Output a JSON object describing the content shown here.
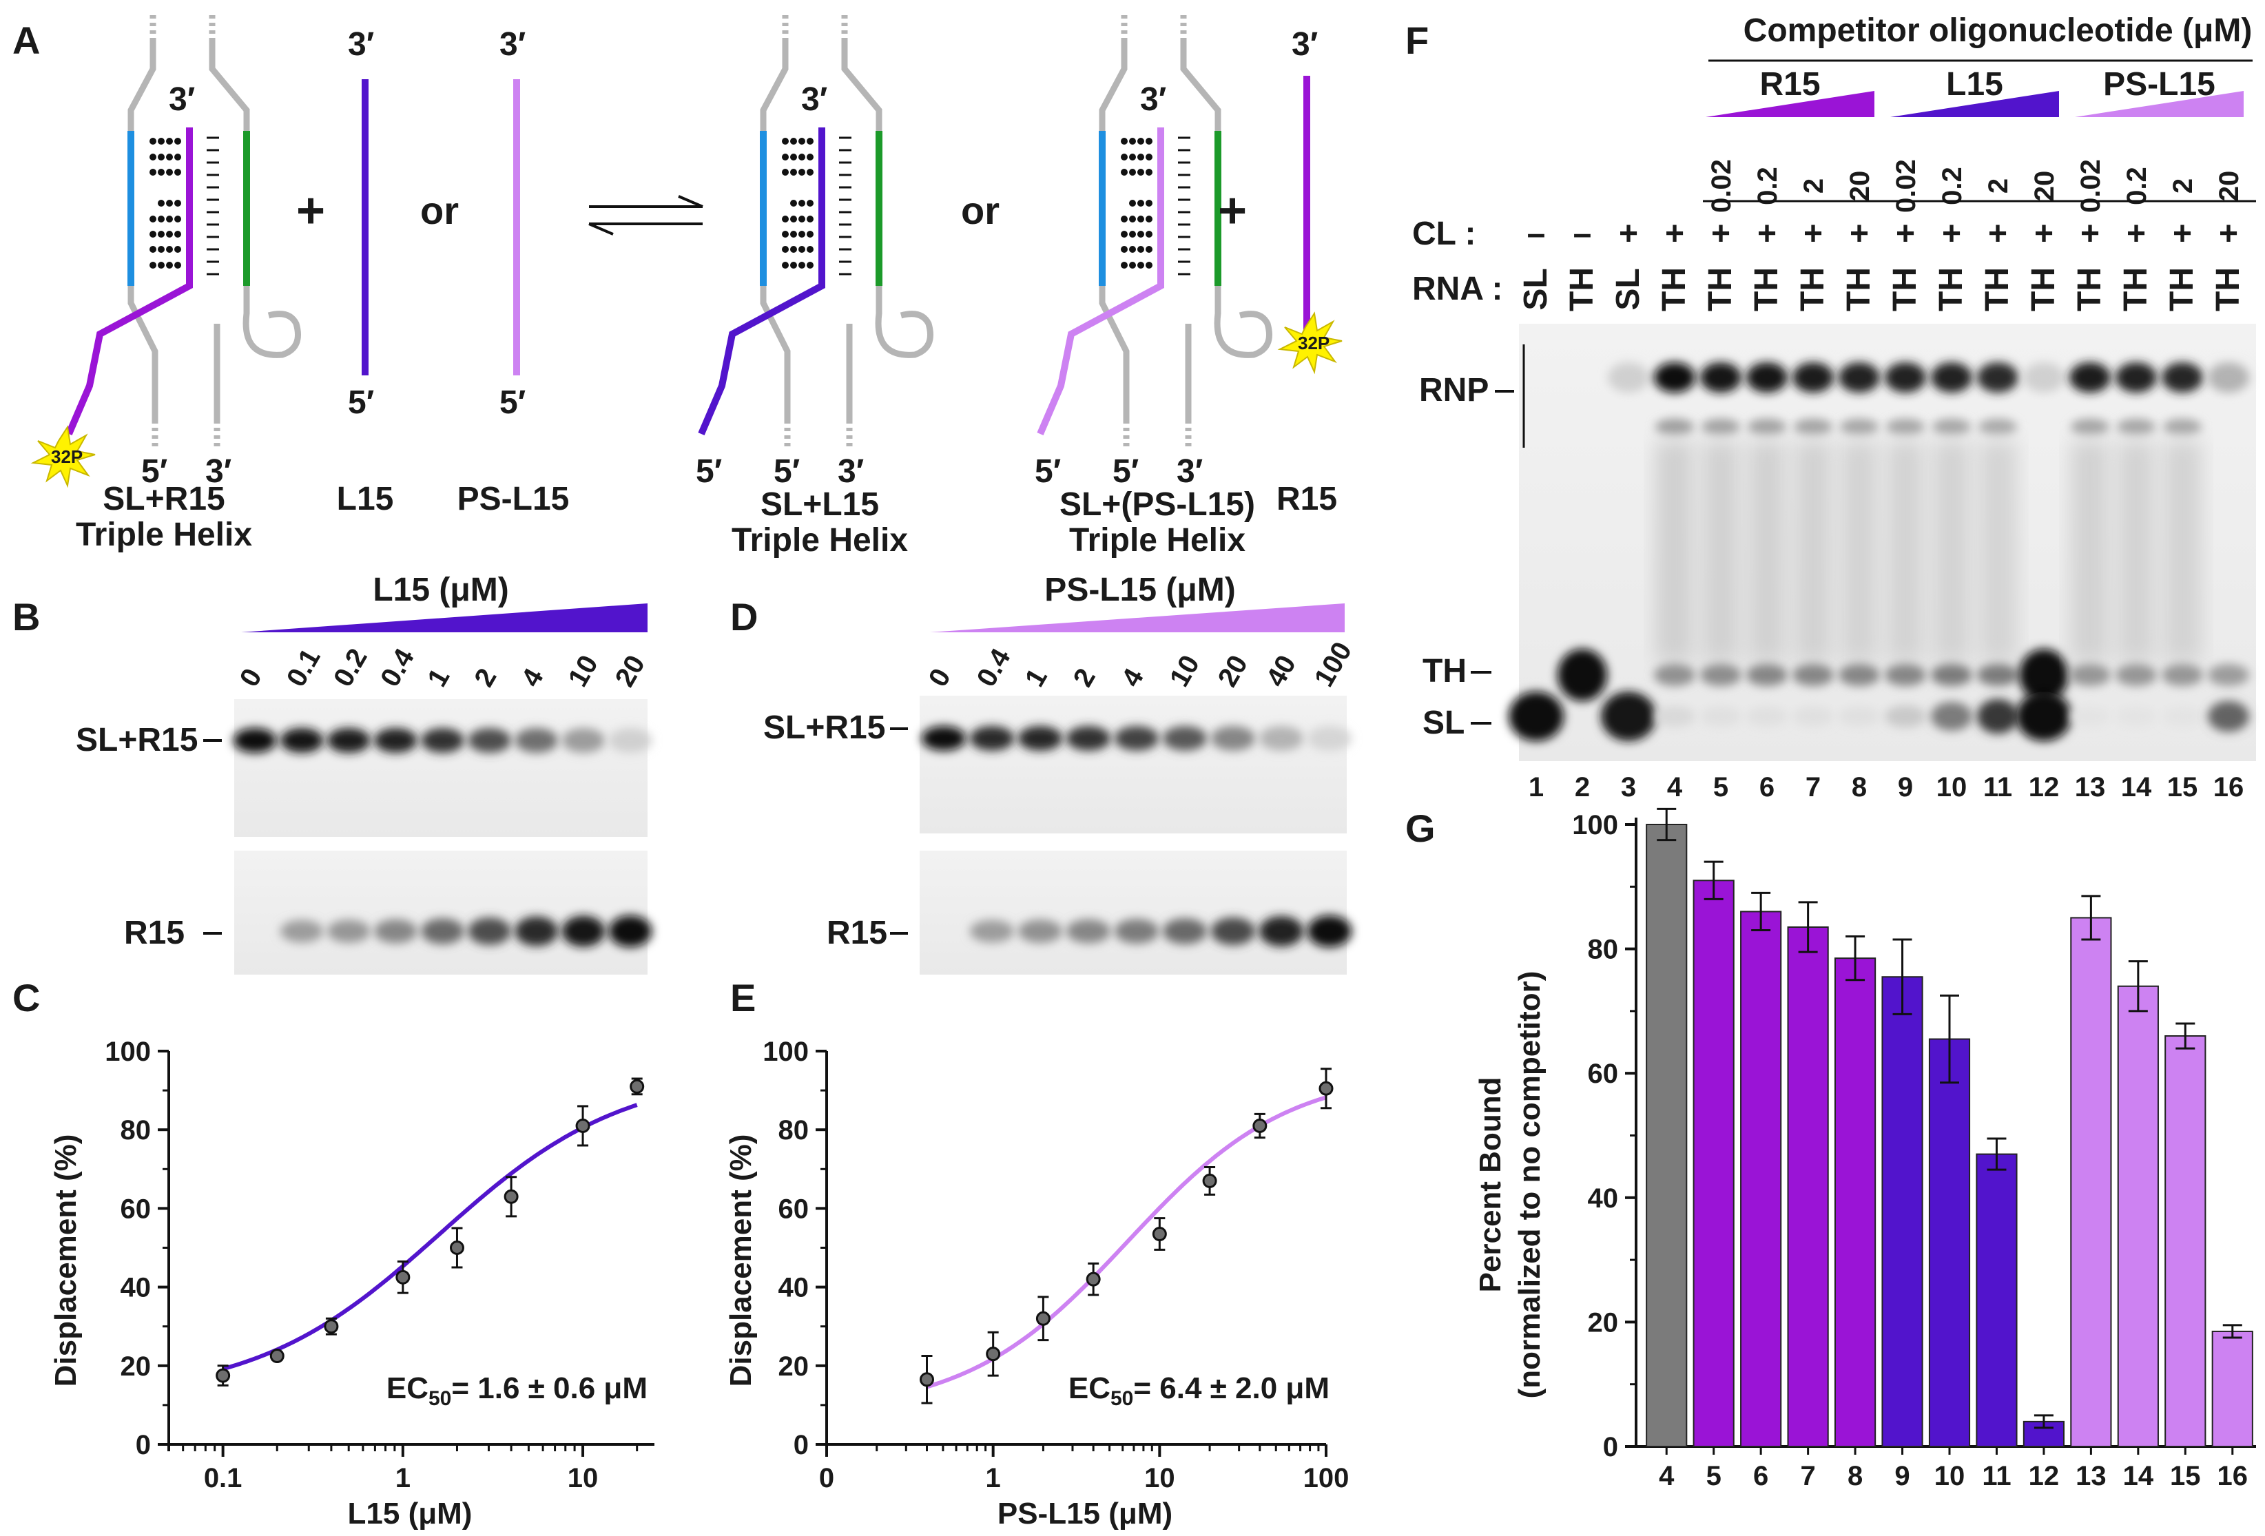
{
  "panels": {
    "A": {
      "letter": "A",
      "strand_labels": {
        "three_prime": "3′",
        "five_prime": "5′"
      },
      "symbols": {
        "plus": "+",
        "or": "or"
      },
      "p32_label": "32P",
      "captions": {
        "sl_r15": [
          "SL+R15",
          "Triple Helix"
        ],
        "l15": "L15",
        "ps_l15": "PS-L15",
        "sl_l15": [
          "SL+L15",
          "Triple Helix"
        ],
        "sl_ps_l15": [
          "SL+(PS-L15)",
          "Triple Helix"
        ],
        "r15": "R15"
      }
    },
    "B": {
      "letter": "B",
      "title": "L15 (μM)",
      "lanes": [
        "0",
        "0.1",
        "0.2",
        "0.4",
        "1",
        "2",
        "4",
        "10",
        "20"
      ],
      "band_labels": {
        "top": "SL+R15",
        "bottom": "R15"
      },
      "top_intensity": [
        1.0,
        0.95,
        0.93,
        0.9,
        0.82,
        0.7,
        0.55,
        0.35,
        0.12
      ],
      "bottom_intensity": [
        0.0,
        0.35,
        0.38,
        0.45,
        0.58,
        0.7,
        0.85,
        0.95,
        1.0
      ]
    },
    "D": {
      "letter": "D",
      "title": "PS-L15 (μM)",
      "lanes": [
        "0",
        "0.4",
        "1",
        "2",
        "4",
        "10",
        "20",
        "40",
        "100"
      ],
      "band_labels": {
        "top": "SL+R15",
        "bottom": "R15"
      },
      "top_intensity": [
        1.0,
        0.85,
        0.88,
        0.82,
        0.75,
        0.65,
        0.45,
        0.25,
        0.1
      ],
      "bottom_intensity": [
        0.0,
        0.35,
        0.4,
        0.45,
        0.5,
        0.58,
        0.72,
        0.9,
        1.0
      ]
    },
    "F": {
      "letter": "F",
      "group_title": "Competitor oligonucleotide (μM)",
      "groups": [
        "R15",
        "L15",
        "PS-L15"
      ],
      "concentrations": [
        "0.02",
        "0.2",
        "2",
        "20"
      ],
      "row_labels": {
        "cl": "CL :",
        "rna": "RNA :"
      },
      "cl": [
        "–",
        "–",
        "+",
        "+",
        "+",
        "+",
        "+",
        "+",
        "+",
        "+",
        "+",
        "+",
        "+",
        "+",
        "+",
        "+"
      ],
      "rna": [
        "SL",
        "TH",
        "SL",
        "TH",
        "TH",
        "TH",
        "TH",
        "TH",
        "TH",
        "TH",
        "TH",
        "TH",
        "TH",
        "TH",
        "TH",
        "TH"
      ],
      "band_labels": {
        "rnp": "RNP",
        "th": "TH",
        "sl": "SL"
      },
      "lane_numbers": [
        "1",
        "2",
        "3",
        "4",
        "5",
        "6",
        "7",
        "8",
        "9",
        "10",
        "11",
        "12",
        "13",
        "14",
        "15",
        "16"
      ],
      "rnp_intensity": [
        0,
        0,
        0.12,
        1.0,
        0.95,
        0.95,
        0.93,
        0.9,
        0.9,
        0.9,
        0.85,
        0.12,
        0.92,
        0.9,
        0.88,
        0.25
      ],
      "th_intensity": [
        0,
        1.0,
        0,
        0.4,
        0.42,
        0.45,
        0.45,
        0.45,
        0.45,
        0.5,
        0.5,
        1.0,
        0.38,
        0.38,
        0.38,
        0.35
      ],
      "sl_intensity": [
        1.0,
        0,
        0.95,
        0.08,
        0.05,
        0.05,
        0.05,
        0.05,
        0.15,
        0.5,
        0.8,
        1.0,
        0.03,
        0.03,
        0.03,
        0.6
      ]
    }
  },
  "colors": {
    "r15": "#9a14d6",
    "l15": "#5214cc",
    "ps_l15": "#cd82f2",
    "control": "#7b7b7b",
    "blue_strand": "#1e8fe0",
    "green_strand": "#1c9a2a",
    "loop": "#b5b5b5",
    "starburst": "#fff200"
  },
  "chart_data": [
    {
      "panel": "C",
      "type": "scatter",
      "xlabel": "L15 (μM)",
      "ylabel": "Displacement (%)",
      "x_scale": "log",
      "xlim": [
        0.05,
        25
      ],
      "ylim": [
        0,
        100
      ],
      "x_ticks": [
        "0.1",
        "1",
        "10"
      ],
      "y_ticks": [
        "0",
        "20",
        "40",
        "60",
        "80",
        "100"
      ],
      "annotation": "EC50= 1.6 ± 0.6 μM",
      "series": [
        {
          "x": [
            0.1,
            0.2,
            0.4,
            1,
            2,
            4,
            10,
            20
          ],
          "y": [
            17.5,
            22.5,
            30,
            42.5,
            50,
            63,
            81,
            91
          ],
          "err": [
            2.5,
            1.0,
            2.0,
            4.0,
            5.0,
            5.0,
            5.0,
            2.0
          ]
        }
      ],
      "fit": {
        "model": "sigmoid",
        "bottom": 12,
        "top": 95,
        "ec50": 1.6,
        "hill": 0.85
      }
    },
    {
      "panel": "E",
      "type": "scatter",
      "xlabel": "PS-L15 (μM)",
      "ylabel": "Displacement (%)",
      "x_scale": "log",
      "xlim": [
        0.1,
        100
      ],
      "ylim": [
        0,
        100
      ],
      "x_ticks": [
        "0",
        "1",
        "10",
        "100"
      ],
      "y_ticks": [
        "0",
        "20",
        "40",
        "60",
        "80",
        "100"
      ],
      "annotation": "EC50= 6.4 ± 2.0 μM",
      "series": [
        {
          "x": [
            0.4,
            1,
            2,
            4,
            10,
            20,
            40,
            100
          ],
          "y": [
            16.5,
            23,
            32,
            42,
            53.5,
            67,
            81,
            90.5
          ],
          "err": [
            6.0,
            5.5,
            5.5,
            4.0,
            4.0,
            3.5,
            3.0,
            5.0
          ]
        }
      ],
      "fit": {
        "model": "sigmoid",
        "bottom": 8,
        "top": 95,
        "ec50": 6.4,
        "hill": 0.9
      }
    },
    {
      "panel": "G",
      "type": "bar",
      "ylabel": [
        "Percent Bound",
        "(normalized to no competitor)"
      ],
      "ylim": [
        0,
        100
      ],
      "y_ticks": [
        "0",
        "20",
        "40",
        "60",
        "80",
        "100"
      ],
      "categories": [
        "4",
        "5",
        "6",
        "7",
        "8",
        "9",
        "10",
        "11",
        "12",
        "13",
        "14",
        "15",
        "16"
      ],
      "values": [
        100,
        91,
        86,
        83.5,
        78.5,
        75.5,
        65.5,
        47,
        4,
        85,
        74,
        66,
        18.5
      ],
      "errors": [
        2.5,
        3.0,
        3.0,
        4.0,
        3.5,
        6.0,
        7.0,
        2.5,
        1.0,
        3.5,
        4.0,
        2.0,
        1.0
      ],
      "groups": [
        "control",
        "r15",
        "r15",
        "r15",
        "r15",
        "l15",
        "l15",
        "l15",
        "l15",
        "ps_l15",
        "ps_l15",
        "ps_l15",
        "ps_l15"
      ]
    }
  ]
}
